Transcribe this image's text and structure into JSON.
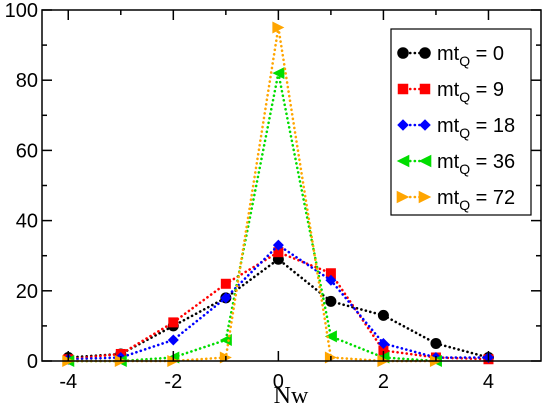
{
  "chart_data": {
    "type": "line",
    "xlabel": "Nw",
    "ylabel": "",
    "xlim": [
      -4.5,
      5
    ],
    "ylim": [
      0,
      100
    ],
    "xticks": [
      -4,
      -2,
      0,
      2,
      4
    ],
    "yticks": [
      0,
      20,
      40,
      60,
      80,
      100
    ],
    "legend_position": "top-right",
    "grid": false,
    "series": [
      {
        "name": "mt_Q = 0",
        "label_main": "mt",
        "label_sub": "Q",
        "label_tail": " = 0",
        "color": "#000000",
        "marker": "circle",
        "x": [
          -4,
          -3,
          -2,
          -1,
          0,
          1,
          2,
          3,
          4
        ],
        "y": [
          1,
          2,
          10,
          18,
          29,
          17,
          13,
          5,
          1
        ]
      },
      {
        "name": "mt_Q = 9",
        "label_main": "mt",
        "label_sub": "Q",
        "label_tail": " = 9",
        "color": "#ff0000",
        "marker": "square",
        "x": [
          -4,
          -3,
          -2,
          -1,
          0,
          1,
          2,
          3,
          4
        ],
        "y": [
          0.5,
          2,
          11,
          22,
          31,
          25,
          3,
          1,
          0.5
        ]
      },
      {
        "name": "mt_Q = 18",
        "label_main": "mt",
        "label_sub": "Q",
        "label_tail": " = 18",
        "color": "#0000ff",
        "marker": "diamond",
        "x": [
          -4,
          -3,
          -2,
          -1,
          0,
          1,
          2,
          3,
          4
        ],
        "y": [
          0.5,
          1,
          6,
          18,
          33,
          23,
          5,
          1,
          1
        ]
      },
      {
        "name": "mt_Q = 36",
        "label_main": "mt",
        "label_sub": "Q",
        "label_tail": " = 36",
        "color": "#00dd00",
        "marker": "triangle-left",
        "x": [
          -4,
          -3,
          -2,
          -1,
          0,
          1,
          2,
          3
        ],
        "y": [
          0,
          0,
          1,
          6,
          82,
          7,
          1,
          0
        ]
      },
      {
        "name": "mt_Q = 72",
        "label_main": "mt",
        "label_sub": "Q",
        "label_tail": " = 72",
        "color": "#ffa500",
        "marker": "triangle-right",
        "x": [
          -4,
          -3,
          -2,
          -1,
          0,
          1,
          2,
          3
        ],
        "y": [
          0,
          0,
          0,
          1,
          95,
          1,
          0,
          0
        ]
      }
    ]
  }
}
